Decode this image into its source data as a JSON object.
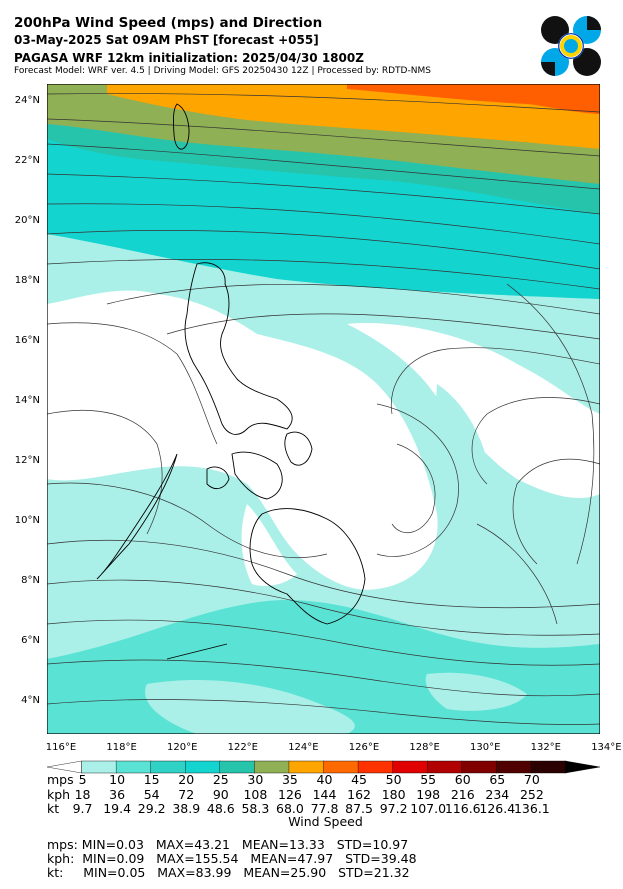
{
  "header": {
    "title": "200hPa Wind Speed (mps) and Direction",
    "date_line": "03-May-2025 Sat 09AM PhST [forecast +055]",
    "init_line": "PAGASA WRF 12km initialization: 2025/04/30 1800Z",
    "model_line": "Forecast Model: WRF ver. 4.5 | Driving Model: GFS 20250430 12Z | Processed by: RDTD-NMS"
  },
  "map": {
    "lat_labels": [
      "24°N",
      "22°N",
      "20°N",
      "18°N",
      "16°N",
      "14°N",
      "12°N",
      "10°N",
      "8°N",
      "6°N",
      "4°N"
    ],
    "lon_labels": [
      "116°E",
      "118°E",
      "120°E",
      "122°E",
      "124°E",
      "126°E",
      "128°E",
      "130°E",
      "132°E",
      "134°E"
    ],
    "colors": {
      "band_5_10": "#aaf0e8",
      "band_10_15": "#5ae2d4",
      "band_15_20": "#30d2c6",
      "band_20_25": "#14d4d0",
      "band_25_30": "#27c4ac",
      "band_30_35": "#8fb054",
      "band_35_40": "#ffa500",
      "band_40_45": "#ff5f00",
      "land_outline": "#000000",
      "streamline": "#333333"
    }
  },
  "colorbar": {
    "title": "Wind Speed",
    "units": [
      "mps",
      "kph",
      "kt"
    ],
    "mps": [
      "5",
      "10",
      "15",
      "20",
      "25",
      "30",
      "35",
      "40",
      "45",
      "50",
      "55",
      "60",
      "65",
      "70"
    ],
    "kph": [
      "18",
      "36",
      "54",
      "72",
      "90",
      "108",
      "126",
      "144",
      "162",
      "180",
      "198",
      "216",
      "234",
      "252"
    ],
    "kt": [
      "9.7",
      "19.4",
      "29.2",
      "38.9",
      "48.6",
      "58.3",
      "68.0",
      "77.8",
      "87.5",
      "97.2",
      "107.0",
      "116.6",
      "126.4",
      "136.1"
    ],
    "colors": [
      "#ffffff",
      "#aaf0e8",
      "#5ae2d4",
      "#30d2c6",
      "#14d4d0",
      "#27c4ac",
      "#8fb054",
      "#ffa500",
      "#ff6a00",
      "#ff3300",
      "#e00000",
      "#b00000",
      "#800000",
      "#500000",
      "#2a0000",
      "#000000"
    ]
  },
  "stats": {
    "mps": "mps: MIN=0.03   MAX=43.21   MEAN=13.33   STD=10.97",
    "kph": "kph:  MIN=0.09   MAX=155.54   MEAN=47.97   STD=39.48",
    "kt": "kt:     MIN=0.05   MAX=83.99   MEAN=25.90   STD=21.32"
  }
}
